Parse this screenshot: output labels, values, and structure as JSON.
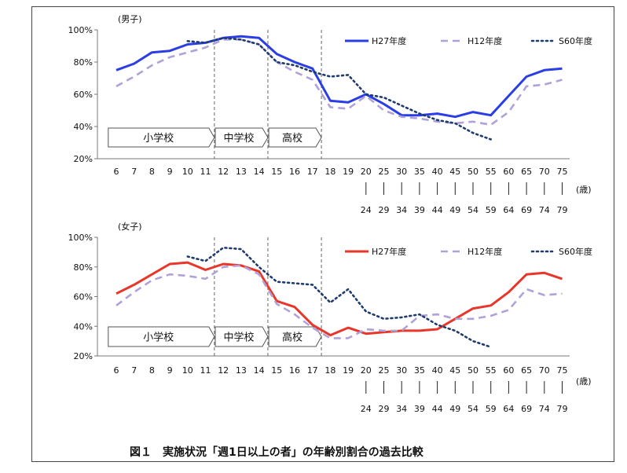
{
  "caption": "図１　実施状況「週1日以上の者」の年齢別割合の過去比較",
  "chart_data": [
    {
      "type": "line",
      "title": "(男子)",
      "categories": [
        "6",
        "7",
        "8",
        "9",
        "10",
        "11",
        "12",
        "13",
        "14",
        "15",
        "16",
        "17",
        "18",
        "19",
        "20-24",
        "25-29",
        "30-34",
        "35-39",
        "40-44",
        "45-49",
        "50-54",
        "55-59",
        "60-64",
        "65-69",
        "70-74",
        "75-79"
      ],
      "x_tick_labels_top": [
        "6",
        "7",
        "8",
        "9",
        "10",
        "11",
        "12",
        "13",
        "14",
        "15",
        "16",
        "17",
        "18",
        "19",
        "20",
        "25",
        "30",
        "35",
        "40",
        "45",
        "50",
        "55",
        "60",
        "65",
        "70",
        "75"
      ],
      "x_tick_labels_bottom": [
        "",
        "",
        "",
        "",
        "",
        "",
        "",
        "",
        "",
        "",
        "",
        "",
        "",
        "",
        "24",
        "29",
        "34",
        "39",
        "44",
        "49",
        "54",
        "59",
        "64",
        "69",
        "74",
        "79"
      ],
      "x_unit": "(歳)",
      "ylim": [
        20,
        100
      ],
      "yticks": [
        "20%",
        "40%",
        "60%",
        "80%",
        "100%"
      ],
      "series": [
        {
          "name": "H27年度",
          "color": "#2b3ee6",
          "style": "solid",
          "values": [
            75,
            79,
            86,
            87,
            91,
            92,
            95,
            96,
            95,
            85,
            80,
            76,
            56,
            55,
            60,
            54,
            47,
            47,
            48,
            46,
            49,
            47,
            59,
            71,
            75,
            76
          ]
        },
        {
          "name": "H12年度",
          "color": "#b0a2d8",
          "style": "dashed",
          "values": [
            65,
            71,
            78,
            83,
            86,
            89,
            94,
            94,
            91,
            80,
            74,
            69,
            52,
            51,
            59,
            50,
            46,
            45,
            43,
            42,
            43,
            41,
            49,
            65,
            66,
            69
          ]
        },
        {
          "name": "S60年度",
          "color": "#1f3b6e",
          "style": "dotted",
          "values": [
            null,
            null,
            null,
            null,
            93,
            92,
            95,
            94,
            91,
            80,
            78,
            74,
            71,
            72,
            60,
            58,
            53,
            48,
            44,
            42,
            36,
            32,
            null,
            null,
            null,
            null
          ]
        }
      ],
      "school_bands": [
        {
          "label": "小学校",
          "from": "6",
          "to": "11"
        },
        {
          "label": "中学校",
          "from": "12",
          "to": "14"
        },
        {
          "label": "高校",
          "from": "15",
          "to": "17"
        }
      ],
      "legend": "top-right"
    },
    {
      "type": "line",
      "title": "(女子)",
      "categories": [
        "6",
        "7",
        "8",
        "9",
        "10",
        "11",
        "12",
        "13",
        "14",
        "15",
        "16",
        "17",
        "18",
        "19",
        "20-24",
        "25-29",
        "30-34",
        "35-39",
        "40-44",
        "45-49",
        "50-54",
        "55-59",
        "60-64",
        "65-69",
        "70-74",
        "75-79"
      ],
      "x_tick_labels_top": [
        "6",
        "7",
        "8",
        "9",
        "10",
        "11",
        "12",
        "13",
        "14",
        "15",
        "16",
        "17",
        "18",
        "19",
        "20",
        "25",
        "30",
        "35",
        "40",
        "45",
        "50",
        "55",
        "60",
        "65",
        "70",
        "75"
      ],
      "x_tick_labels_bottom": [
        "",
        "",
        "",
        "",
        "",
        "",
        "",
        "",
        "",
        "",
        "",
        "",
        "",
        "",
        "24",
        "29",
        "34",
        "39",
        "44",
        "49",
        "54",
        "59",
        "64",
        "69",
        "74",
        "79"
      ],
      "x_unit": "(歳)",
      "ylim": [
        20,
        100
      ],
      "yticks": [
        "20%",
        "40%",
        "60%",
        "80%",
        "100%"
      ],
      "series": [
        {
          "name": "H27年度",
          "color": "#e8362a",
          "style": "solid",
          "values": [
            62,
            68,
            75,
            82,
            83,
            78,
            82,
            81,
            77,
            57,
            53,
            41,
            34,
            39,
            35,
            36,
            37,
            37,
            38,
            45,
            52,
            54,
            63,
            75,
            76,
            72
          ]
        },
        {
          "name": "H12年度",
          "color": "#b0a2d8",
          "style": "dashed",
          "values": [
            54,
            63,
            71,
            75,
            74,
            72,
            80,
            81,
            75,
            55,
            48,
            39,
            32,
            32,
            38,
            37,
            37,
            47,
            48,
            45,
            45,
            47,
            51,
            65,
            61,
            62
          ]
        },
        {
          "name": "S60年度",
          "color": "#1f3b6e",
          "style": "dotted",
          "values": [
            null,
            null,
            null,
            null,
            87,
            84,
            93,
            92,
            80,
            70,
            69,
            68,
            56,
            65,
            50,
            45,
            46,
            48,
            41,
            37,
            30,
            26,
            null,
            null,
            null,
            null
          ]
        }
      ],
      "school_bands": [
        {
          "label": "小学校",
          "from": "6",
          "to": "11"
        },
        {
          "label": "中学校",
          "from": "12",
          "to": "14"
        },
        {
          "label": "高校",
          "from": "15",
          "to": "17"
        }
      ],
      "legend": "top-right"
    }
  ]
}
